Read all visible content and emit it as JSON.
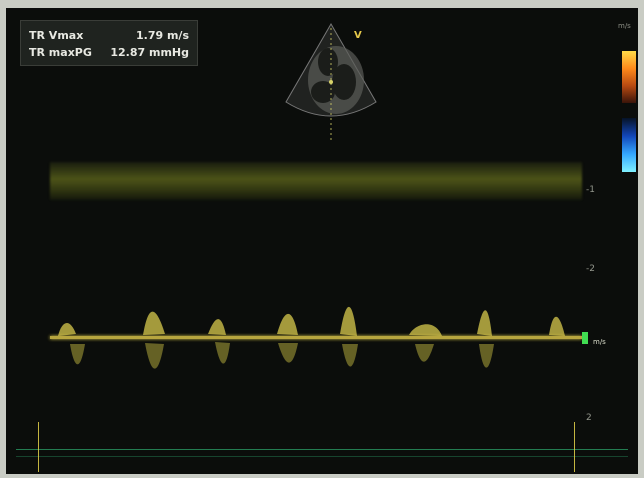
{
  "measurements": [
    {
      "label": "TR Vmax",
      "value": "1.79 m/s"
    },
    {
      "label": "TR maxPG",
      "value": "12.87 mmHg"
    }
  ],
  "orientation_marker": "V",
  "scale": {
    "velocity_label": "m/s",
    "ticks": [
      {
        "label": "-1"
      },
      {
        "label": "-2"
      },
      {
        "label": "2"
      }
    ]
  },
  "colors": {
    "frame_bg": "#0b0d0b",
    "doppler": "#d5c64b",
    "baseline": "#b7a53f",
    "marker": "#41dd52",
    "ecg": "#2ead6f"
  }
}
